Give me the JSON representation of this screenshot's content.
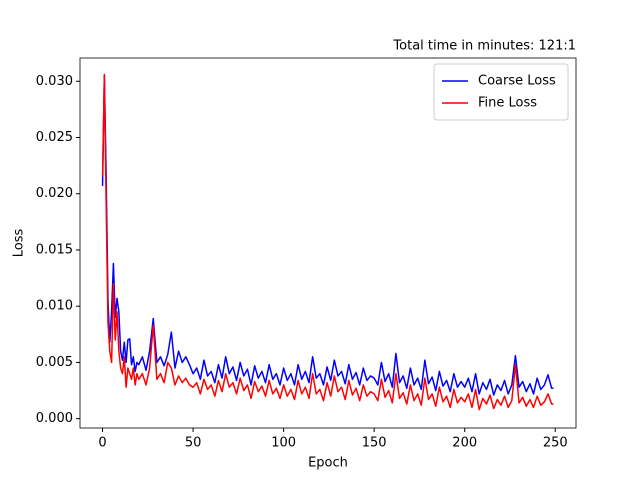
{
  "chart_data": {
    "type": "line",
    "title": "Total time in minutes: 121:1",
    "xlabel": "Epoch",
    "ylabel": "Loss",
    "x": [
      0,
      1,
      2,
      3,
      4,
      5,
      6,
      7,
      8,
      9,
      10,
      11,
      12,
      13,
      14,
      15,
      16,
      17,
      18,
      19,
      20,
      22,
      24,
      26,
      28,
      30,
      32,
      34,
      36,
      38,
      40,
      42,
      44,
      46,
      48,
      50,
      52,
      54,
      56,
      58,
      60,
      62,
      64,
      66,
      68,
      70,
      72,
      74,
      76,
      78,
      80,
      82,
      84,
      86,
      88,
      90,
      92,
      94,
      96,
      98,
      100,
      102,
      104,
      106,
      108,
      110,
      112,
      114,
      116,
      118,
      120,
      122,
      124,
      126,
      128,
      130,
      132,
      134,
      136,
      138,
      140,
      142,
      144,
      146,
      148,
      150,
      152,
      154,
      156,
      158,
      160,
      162,
      164,
      166,
      168,
      170,
      172,
      174,
      176,
      178,
      180,
      182,
      184,
      186,
      188,
      190,
      192,
      194,
      196,
      198,
      200,
      202,
      204,
      206,
      208,
      210,
      212,
      214,
      216,
      218,
      220,
      222,
      224,
      226,
      228,
      230,
      232,
      234,
      236,
      238,
      240,
      242,
      244,
      246,
      248,
      249
    ],
    "series": [
      {
        "name": "Coarse Loss",
        "color": "#0000ff",
        "values": [
          0.0207,
          0.0305,
          0.0215,
          0.0105,
          0.0068,
          0.0095,
          0.0138,
          0.009,
          0.0107,
          0.0095,
          0.006,
          0.0052,
          0.0068,
          0.005,
          0.007,
          0.0071,
          0.0048,
          0.0055,
          0.0042,
          0.005,
          0.0048,
          0.0055,
          0.0043,
          0.006,
          0.0089,
          0.005,
          0.0055,
          0.0047,
          0.0057,
          0.0077,
          0.0045,
          0.006,
          0.005,
          0.0055,
          0.0048,
          0.004,
          0.0045,
          0.0035,
          0.0052,
          0.0038,
          0.0042,
          0.0032,
          0.0048,
          0.0036,
          0.0055,
          0.004,
          0.0046,
          0.0034,
          0.005,
          0.0038,
          0.0044,
          0.003,
          0.0047,
          0.0036,
          0.0042,
          0.0032,
          0.0048,
          0.0035,
          0.004,
          0.003,
          0.0045,
          0.0034,
          0.004,
          0.003,
          0.0048,
          0.0035,
          0.0042,
          0.0032,
          0.0055,
          0.0036,
          0.004,
          0.003,
          0.0046,
          0.0034,
          0.0052,
          0.0038,
          0.0042,
          0.0031,
          0.0048,
          0.0035,
          0.0041,
          0.003,
          0.0045,
          0.0034,
          0.0038,
          0.0036,
          0.003,
          0.005,
          0.0033,
          0.004,
          0.0028,
          0.0058,
          0.0032,
          0.0038,
          0.0027,
          0.0045,
          0.003,
          0.0036,
          0.0026,
          0.0052,
          0.0031,
          0.0037,
          0.0025,
          0.0042,
          0.0029,
          0.0034,
          0.0024,
          0.004,
          0.0028,
          0.0033,
          0.0028,
          0.0036,
          0.0024,
          0.004,
          0.0022,
          0.0032,
          0.0026,
          0.0035,
          0.0021,
          0.003,
          0.0025,
          0.0034,
          0.0022,
          0.003,
          0.0056,
          0.0028,
          0.0033,
          0.0024,
          0.0031,
          0.0022,
          0.0036,
          0.0026,
          0.003,
          0.0039,
          0.0027,
          0.0027
        ]
      },
      {
        "name": "Fine Loss",
        "color": "#ff0000",
        "values": [
          0.0215,
          0.0306,
          0.019,
          0.0085,
          0.006,
          0.005,
          0.012,
          0.007,
          0.0095,
          0.006,
          0.0045,
          0.004,
          0.0055,
          0.0028,
          0.0045,
          0.004,
          0.0035,
          0.0045,
          0.003,
          0.004,
          0.0035,
          0.004,
          0.003,
          0.0045,
          0.0083,
          0.0035,
          0.004,
          0.0032,
          0.005,
          0.0045,
          0.003,
          0.0038,
          0.0032,
          0.0036,
          0.003,
          0.0028,
          0.0032,
          0.0022,
          0.0035,
          0.0026,
          0.003,
          0.002,
          0.0034,
          0.0024,
          0.004,
          0.0028,
          0.0032,
          0.0022,
          0.0036,
          0.0025,
          0.003,
          0.0018,
          0.0033,
          0.0024,
          0.0029,
          0.002,
          0.0034,
          0.0022,
          0.0027,
          0.0018,
          0.003,
          0.002,
          0.0026,
          0.0017,
          0.0034,
          0.0022,
          0.0028,
          0.0018,
          0.004,
          0.0022,
          0.0026,
          0.0016,
          0.0032,
          0.002,
          0.0038,
          0.0024,
          0.0028,
          0.0017,
          0.0034,
          0.0021,
          0.0027,
          0.0016,
          0.003,
          0.002,
          0.0024,
          0.0022,
          0.0016,
          0.0035,
          0.0019,
          0.0025,
          0.0014,
          0.004,
          0.0018,
          0.0023,
          0.0013,
          0.003,
          0.0016,
          0.0022,
          0.0012,
          0.0036,
          0.0017,
          0.0022,
          0.0011,
          0.0028,
          0.0015,
          0.002,
          0.001,
          0.0026,
          0.0014,
          0.0019,
          0.0015,
          0.0022,
          0.001,
          0.0026,
          0.0008,
          0.0018,
          0.0013,
          0.0021,
          0.0009,
          0.0017,
          0.0012,
          0.002,
          0.001,
          0.0016,
          0.0048,
          0.0014,
          0.0019,
          0.0011,
          0.0017,
          0.001,
          0.002,
          0.0012,
          0.0015,
          0.0022,
          0.0013,
          0.0013
        ]
      }
    ],
    "xlim": [
      -12.45,
      261.45
    ],
    "xticks": [
      0,
      50,
      100,
      150,
      200,
      250
    ],
    "ylim": [
      -0.00083,
      0.03207
    ],
    "yticks": [
      {
        "value": 0,
        "label": "0.000"
      },
      {
        "value": 0.005,
        "label": "0.005"
      },
      {
        "value": 0.01,
        "label": "0.010"
      },
      {
        "value": 0.015,
        "label": "0.015"
      },
      {
        "value": 0.02,
        "label": "0.020"
      },
      {
        "value": 0.025,
        "label": "0.025"
      },
      {
        "value": 0.03,
        "label": "0.030"
      }
    ],
    "legend": "upper right",
    "grid": false
  }
}
